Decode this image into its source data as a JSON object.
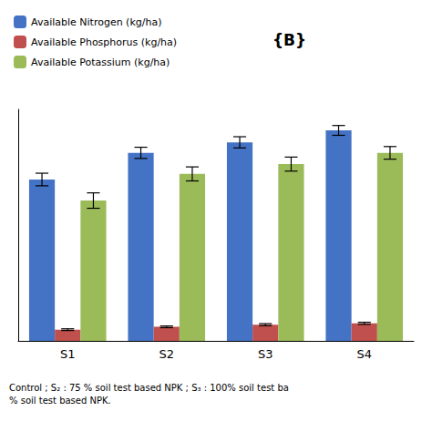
{
  "chart_data": {
    "type": "bar",
    "title": "{B}",
    "annotations": [
      "Control ; S₂ : 75 % soil test based NPK ; S₃ : 100% soil test ba\n% soil test based NPK."
    ],
    "categories": [
      "S1",
      "S2",
      "S3",
      "S4"
    ],
    "series": [
      {
        "name": "Available Nitrogen (kg/ha)",
        "color": "#4472C4",
        "values": [
          230,
          268,
          283,
          300
        ],
        "errors": [
          9,
          8,
          8,
          7
        ]
      },
      {
        "name": "Available Phosphorus (kg/ha)",
        "color": "#C0504D",
        "values": [
          16,
          20,
          23,
          25
        ],
        "errors": [
          1.2,
          1.2,
          1.5,
          1.5
        ]
      },
      {
        "name": "Available Potassium (kg/ha)",
        "color": "#9BBB59",
        "values": [
          200,
          238,
          252,
          268
        ],
        "errors": [
          11,
          10,
          10,
          9
        ]
      }
    ],
    "ylim": [
      0,
      330
    ],
    "grid": false,
    "legend": "top-left",
    "tick_labels": "x"
  }
}
